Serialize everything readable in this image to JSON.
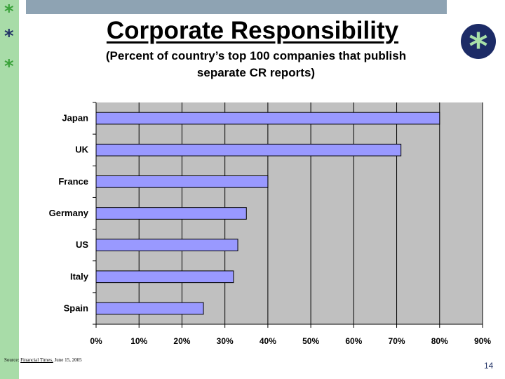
{
  "slide": {
    "title": "Corporate Responsibility",
    "subtitle": "(Percent of country’s top 100 companies that publish\nseparate CR reports)",
    "decor_star": "*",
    "source_prefix": "Source: ",
    "source_publication": "Financial Times,",
    "source_date": " June 15, 2005",
    "page_number": "14"
  },
  "colors": {
    "bar_fill": "#9999ff",
    "plot_background": "#c0c0c0",
    "accent_green": "#a8dca8",
    "accent_navy": "#1c2b66"
  },
  "chart_data": {
    "type": "bar",
    "orientation": "horizontal",
    "title": "Corporate Responsibility",
    "subtitle": "(Percent of country’s top 100 companies that publish separate CR reports)",
    "categories": [
      "Japan",
      "UK",
      "France",
      "Germany",
      "US",
      "Italy",
      "Spain"
    ],
    "values": [
      80,
      71,
      40,
      35,
      33,
      32,
      25
    ],
    "xlim": [
      0,
      90
    ],
    "x_ticks": [
      0,
      10,
      20,
      30,
      40,
      50,
      60,
      70,
      80,
      90
    ],
    "x_tick_labels": [
      "0%",
      "10%",
      "20%",
      "30%",
      "40%",
      "50%",
      "60%",
      "70%",
      "80%",
      "90%"
    ],
    "xlabel": "",
    "ylabel": "",
    "grid": "vertical"
  }
}
